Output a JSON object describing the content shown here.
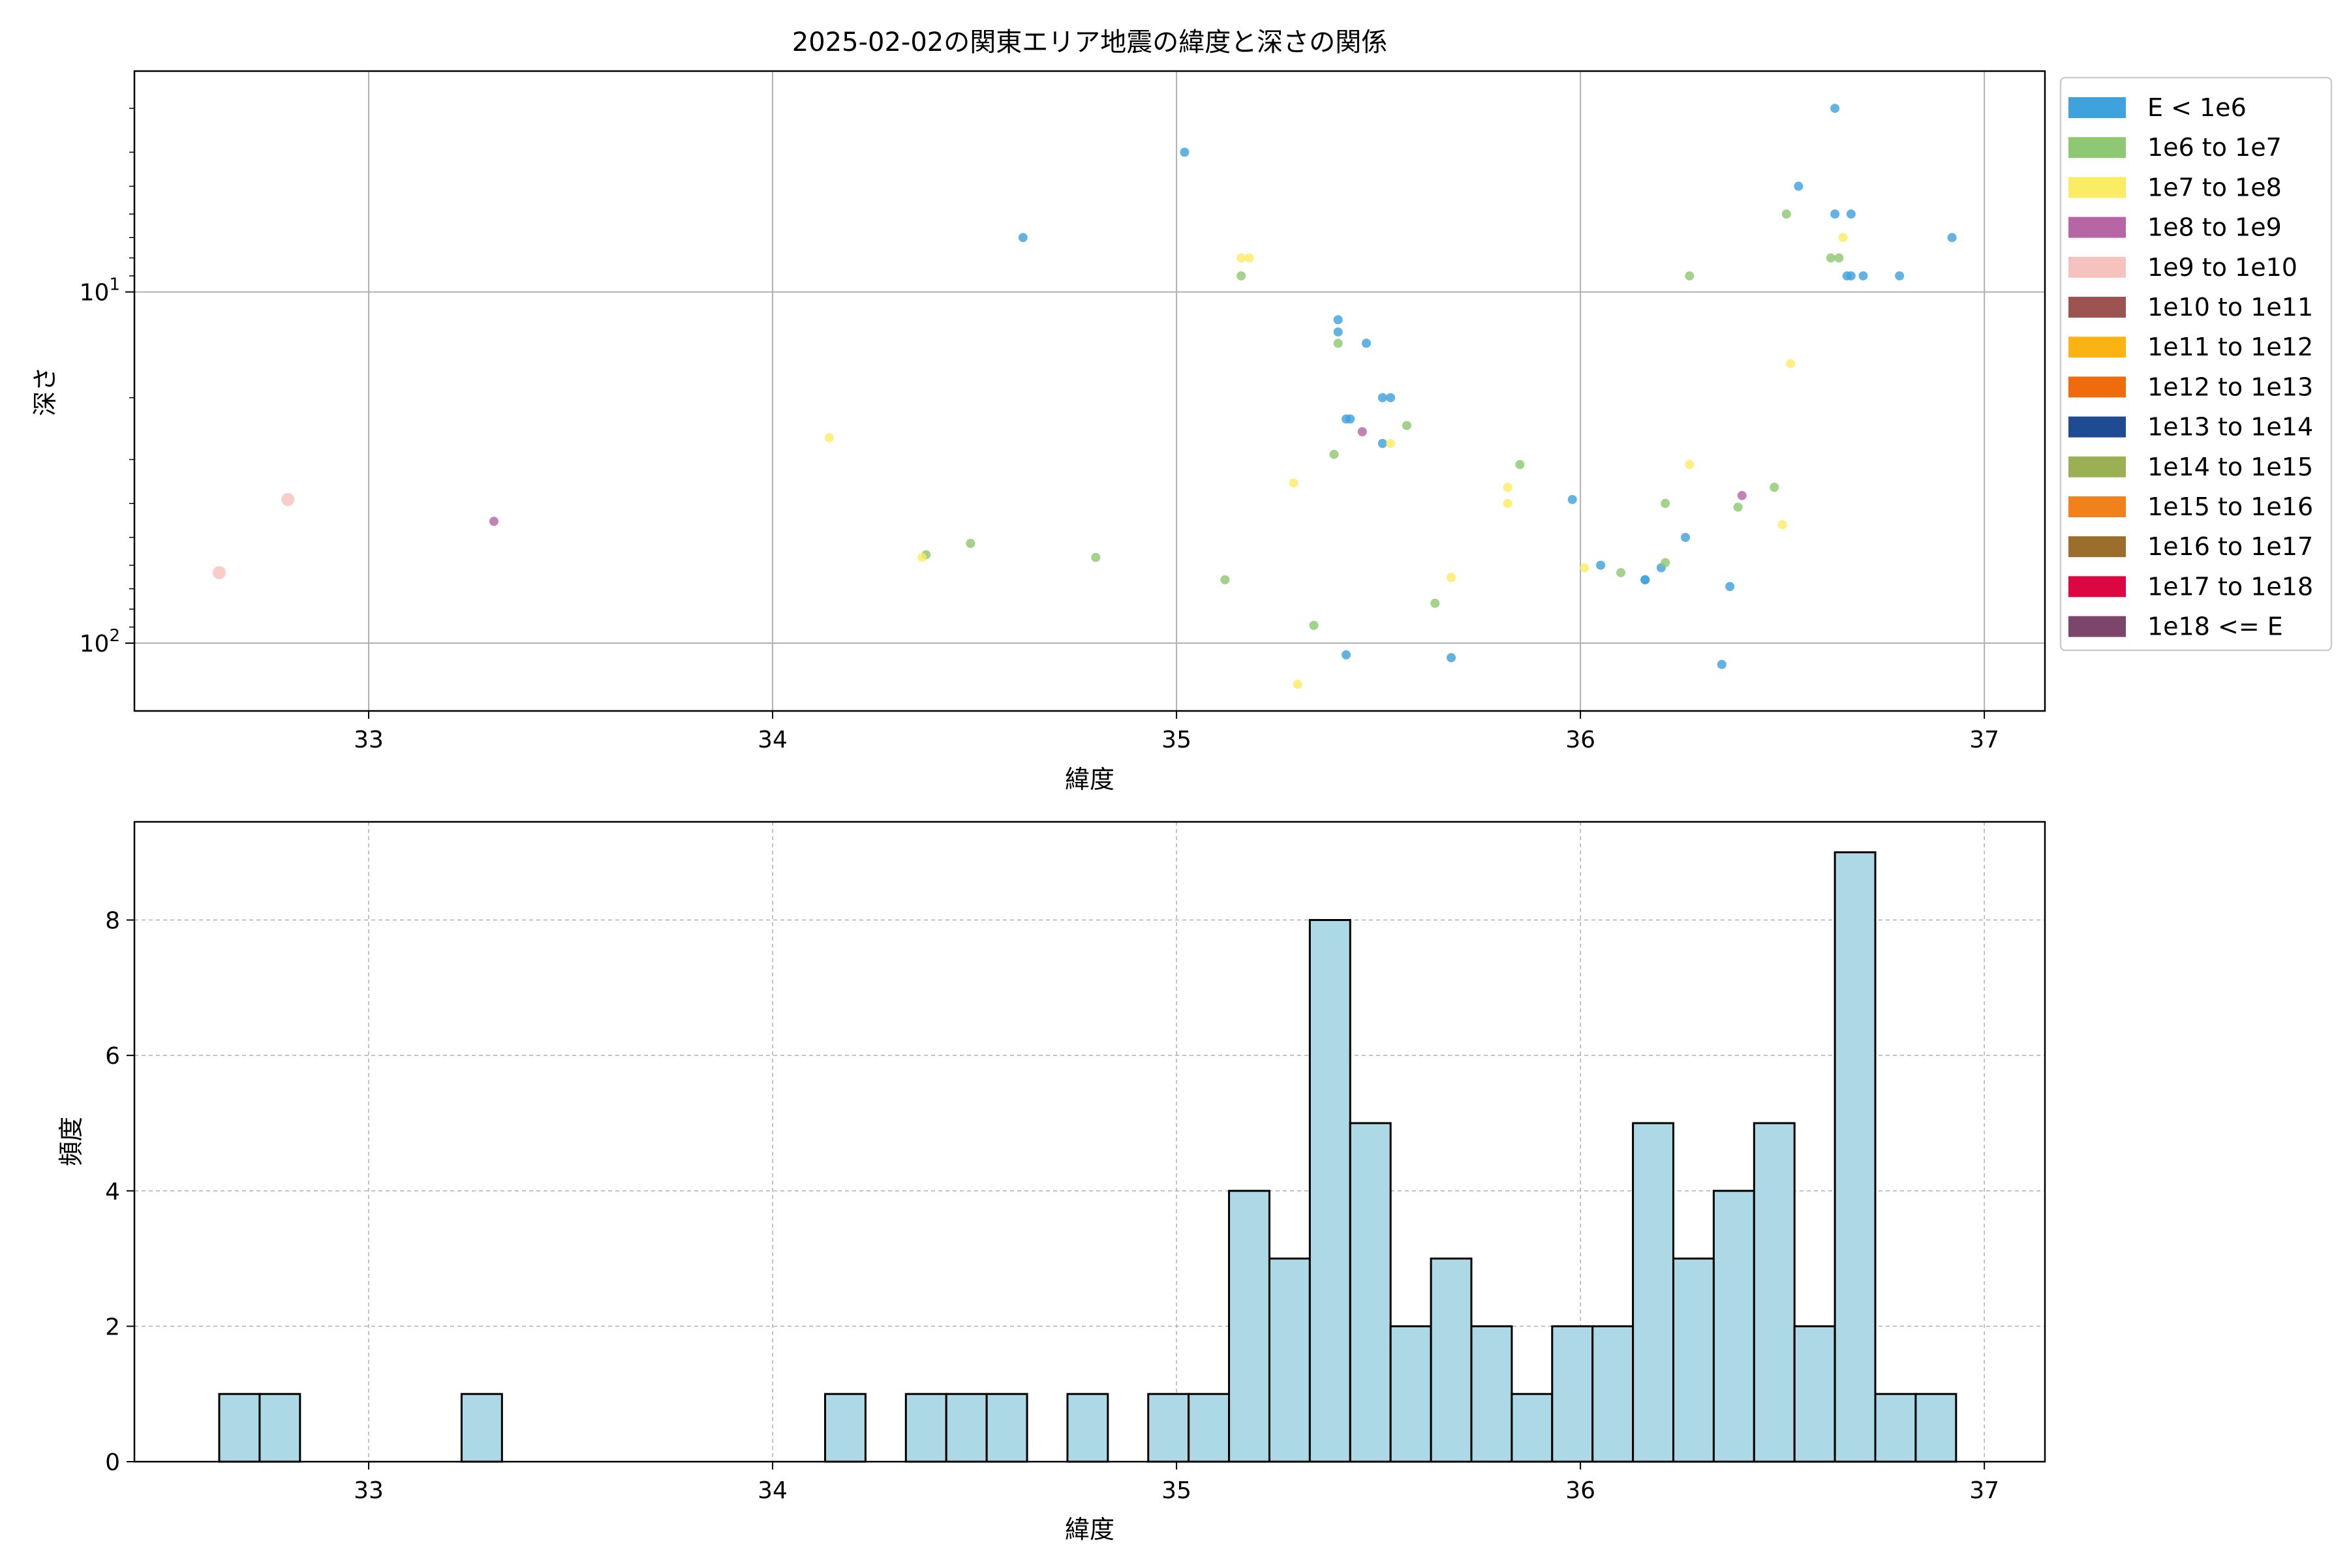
{
  "chart_data": [
    {
      "type": "scatter",
      "title": "2025-02-02の関東エリア地震の緯度と深さの関係",
      "xlabel": "緯度",
      "ylabel": "深さ",
      "xlim": [
        32.42,
        37.15
      ],
      "ylim": [
        156.0,
        2.35
      ],
      "y_scale": "log",
      "y_inverted": true,
      "x_ticks": [
        33,
        34,
        35,
        36,
        37
      ],
      "y_ticks": [
        10,
        100
      ],
      "y_tick_labels": [
        "10^1",
        "10^2"
      ],
      "grid": true,
      "legend_position": "outside right",
      "legend": [
        {
          "label": "E < 1e6",
          "color": "#3fa2dc"
        },
        {
          "label": "1e6 to 1e7",
          "color": "#8fc872"
        },
        {
          "label": "1e7 to 1e8",
          "color": "#fcec64"
        },
        {
          "label": "1e8 to 1e9",
          "color": "#b765a5"
        },
        {
          "label": "1e9 to 1e10",
          "color": "#f5c2bd"
        },
        {
          "label": "1e10 to 1e11",
          "color": "#9d5350"
        },
        {
          "label": "1e11 to 1e12",
          "color": "#f9b313"
        },
        {
          "label": "1e12 to 1e13",
          "color": "#ef6b0b"
        },
        {
          "label": "1e13 to 1e14",
          "color": "#1f4b92"
        },
        {
          "label": "1e14 to 1e15",
          "color": "#9baf54"
        },
        {
          "label": "1e15 to 1e16",
          "color": "#f0811b"
        },
        {
          "label": "1e16 to 1e17",
          "color": "#9b6e2c"
        },
        {
          "label": "1e17 to 1e18",
          "color": "#dc0642"
        },
        {
          "label": "1e18 <= E",
          "color": "#7c456c"
        }
      ],
      "series": [
        {
          "class": 0,
          "points": [
            [
              35.02,
              4
            ],
            [
              34.62,
              7
            ],
            [
              36.63,
              3
            ],
            [
              36.54,
              5
            ],
            [
              36.63,
              6
            ],
            [
              36.67,
              6
            ],
            [
              36.92,
              7
            ],
            [
              36.66,
              9
            ],
            [
              36.67,
              9
            ],
            [
              36.7,
              9
            ],
            [
              36.79,
              9
            ],
            [
              35.4,
              12
            ],
            [
              35.4,
              13
            ],
            [
              35.47,
              14
            ],
            [
              35.51,
              20
            ],
            [
              35.53,
              20
            ],
            [
              35.42,
              23
            ],
            [
              35.43,
              23
            ],
            [
              35.51,
              27
            ],
            [
              35.98,
              39
            ],
            [
              36.05,
              60
            ],
            [
              36.2,
              61
            ],
            [
              36.26,
              50
            ],
            [
              36.16,
              66
            ],
            [
              36.16,
              66
            ],
            [
              36.37,
              69
            ],
            [
              35.42,
              108
            ],
            [
              35.68,
              110
            ],
            [
              36.35,
              115
            ]
          ]
        },
        {
          "class": 1,
          "points": [
            [
              36.51,
              6
            ],
            [
              35.16,
              9
            ],
            [
              36.27,
              9
            ],
            [
              36.62,
              8
            ],
            [
              36.64,
              8
            ],
            [
              35.4,
              14
            ],
            [
              35.57,
              24
            ],
            [
              35.39,
              29
            ],
            [
              35.85,
              31
            ],
            [
              36.21,
              40
            ],
            [
              36.48,
              36
            ],
            [
              36.39,
              41
            ],
            [
              36.21,
              59
            ],
            [
              36.1,
              63
            ],
            [
              34.49,
              52
            ],
            [
              34.38,
              56
            ],
            [
              34.8,
              57
            ],
            [
              35.12,
              66
            ],
            [
              35.64,
              77
            ],
            [
              35.34,
              89
            ]
          ]
        },
        {
          "class": 2,
          "points": [
            [
              35.16,
              8
            ],
            [
              35.18,
              8
            ],
            [
              36.65,
              7
            ],
            [
              36.52,
              16
            ],
            [
              35.53,
              27
            ],
            [
              34.14,
              26
            ],
            [
              35.29,
              35
            ],
            [
              35.82,
              36
            ],
            [
              35.82,
              40
            ],
            [
              36.27,
              31
            ],
            [
              36.5,
              46
            ],
            [
              34.37,
              57
            ],
            [
              36.01,
              61
            ],
            [
              35.68,
              65
            ],
            [
              35.3,
              131
            ]
          ]
        },
        {
          "class": 3,
          "points": [
            [
              35.46,
              25
            ],
            [
              36.4,
              38
            ],
            [
              33.31,
              45
            ]
          ]
        },
        {
          "class": 4,
          "points": [
            [
              32.8,
              39
            ],
            [
              32.63,
              63
            ]
          ]
        }
      ]
    },
    {
      "type": "bar",
      "title": "",
      "xlabel": "緯度",
      "ylabel": "頻度",
      "xlim": [
        32.42,
        37.15
      ],
      "ylim": [
        0,
        9.45
      ],
      "x_ticks": [
        33,
        34,
        35,
        36,
        37
      ],
      "y_ticks": [
        0,
        2,
        4,
        6,
        8
      ],
      "grid": true,
      "bar_color": "#add8e6",
      "bin_start": 32.63,
      "bin_width": 0.1,
      "values": [
        1,
        1,
        0,
        0,
        0,
        0,
        1,
        0,
        0,
        0,
        0,
        0,
        0,
        0,
        0,
        1,
        0,
        1,
        1,
        1,
        0,
        1,
        0,
        1,
        1,
        4,
        3,
        8,
        5,
        2,
        3,
        2,
        1,
        2,
        2,
        5,
        3,
        4,
        5,
        2,
        9,
        1,
        1
      ]
    }
  ]
}
